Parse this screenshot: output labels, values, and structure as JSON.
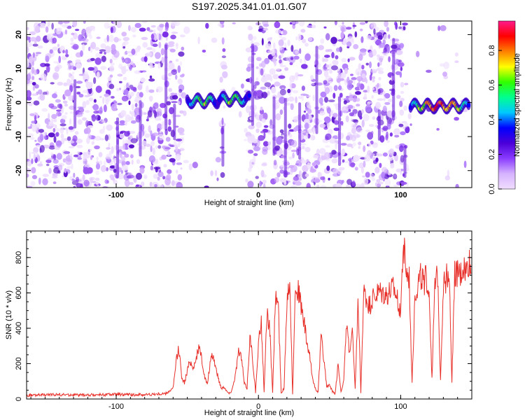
{
  "title": "S197.2025.341.01.01.G07",
  "chart_data": [
    {
      "type": "heatmap",
      "title": "S197.2025.341.01.01.G07",
      "xlabel": "Height of straight line (km)",
      "ylabel": "Frequency (Hz)",
      "xlim": [
        -163,
        150
      ],
      "ylim": [
        -25,
        24
      ],
      "xticks": [
        -100,
        0,
        100
      ],
      "yticks": [
        -20,
        -10,
        0,
        10,
        20
      ],
      "colorbar": {
        "label": "Normalized spectral amplitude",
        "range": [
          0,
          0.97
        ],
        "ticks": [
          0.0,
          0.2,
          0.4,
          0.6,
          0.8
        ],
        "tick_labels": [
          "0.0",
          "0.2",
          "0.4",
          "0.6",
          "0.8"
        ],
        "colors": [
          "#f0ddff",
          "#d6b3ff",
          "#8a3cff",
          "#4b00d8",
          "#0000ff",
          "#00c8ff",
          "#00ff90",
          "#30ff00",
          "#ffff00",
          "#ff8000",
          "#ff0000",
          "#ff1a8c"
        ]
      },
      "signal_segments": [
        {
          "x_start": -50,
          "x_end": -28,
          "frequency": 0.5,
          "peak_amplitude": 0.7
        },
        {
          "x_start": -28,
          "x_end": -6,
          "frequency": 1.0,
          "peak_amplitude": 0.7
        },
        {
          "x_start": 107,
          "x_end": 148,
          "frequency": -1.0,
          "peak_amplitude": 0.95
        }
      ]
    },
    {
      "type": "line",
      "xlabel": "Height of straight line (km)",
      "ylabel": "SNR (10 * v/v)",
      "xlim": [
        -163,
        150
      ],
      "ylim": [
        0,
        950
      ],
      "xticks": [
        -100,
        0,
        100
      ],
      "yticks": [
        0,
        200,
        400,
        600,
        800
      ],
      "series": [
        {
          "name": "SNR",
          "color": "#e8302a",
          "x": [
            -163,
            -140,
            -120,
            -100,
            -80,
            -65,
            -60,
            -58,
            -56,
            -54,
            -52,
            -50,
            -48,
            -46,
            -44,
            -42,
            -40,
            -38,
            -36,
            -34,
            -32,
            -30,
            -28,
            -26,
            -24,
            -22,
            -20,
            -18,
            -16,
            -14,
            -12,
            -10,
            -8,
            -6,
            -4,
            -2,
            0,
            2,
            4,
            6,
            8,
            10,
            12,
            14,
            16,
            18,
            20,
            22,
            24,
            26,
            28,
            30,
            32,
            34,
            36,
            38,
            40,
            42,
            44,
            46,
            48,
            50,
            52,
            54,
            56,
            58,
            60,
            62,
            64,
            66,
            68,
            70,
            72,
            74,
            76,
            78,
            80,
            85,
            90,
            95,
            100,
            102,
            104,
            106,
            108,
            110,
            112,
            114,
            116,
            118,
            120,
            122,
            124,
            126,
            128,
            130,
            132,
            134,
            136,
            138,
            140,
            142,
            144,
            146,
            148,
            150
          ],
          "y": [
            20,
            25,
            22,
            26,
            24,
            30,
            60,
            200,
            290,
            130,
            90,
            160,
            220,
            170,
            230,
            280,
            240,
            130,
            80,
            200,
            250,
            180,
            110,
            60,
            70,
            40,
            30,
            70,
            150,
            260,
            240,
            90,
            60,
            360,
            220,
            40,
            300,
            450,
            30,
            500,
            380,
            30,
            600,
            520,
            30,
            60,
            560,
            700,
            30,
            640,
            620,
            520,
            440,
            320,
            240,
            120,
            60,
            40,
            350,
            230,
            70,
            80,
            40,
            30,
            200,
            40,
            110,
            420,
            260,
            380,
            50,
            550,
            40,
            600,
            560,
            520,
            560,
            600,
            580,
            620,
            500,
            900,
            700,
            680,
            100,
            580,
            640,
            700,
            660,
            680,
            600,
            120,
            620,
            700,
            110,
            650,
            680,
            740,
            100,
            700,
            720,
            690,
            750,
            710,
            780,
            690
          ]
        }
      ]
    }
  ]
}
